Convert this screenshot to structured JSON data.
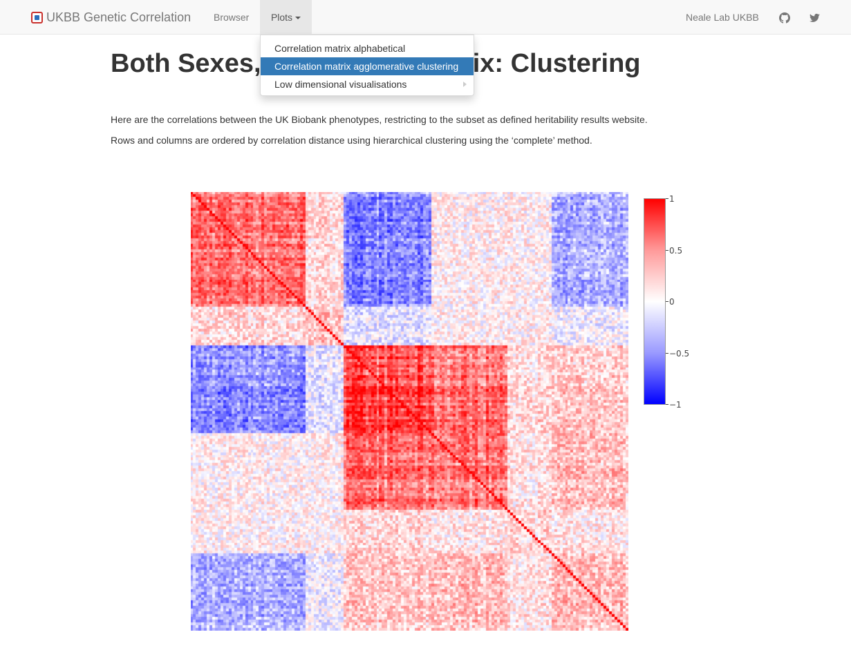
{
  "navbar": {
    "brand": "UKBB Genetic Correlation",
    "links": {
      "browser": "Browser",
      "plots": "Plots",
      "neale": "Neale Lab UKBB"
    },
    "icons": {
      "brand": "ukbb-logo-icon",
      "github": "github-icon",
      "twitter": "twitter-icon"
    }
  },
  "dropdown": {
    "items": [
      {
        "label": "Correlation matrix alphabetical"
      },
      {
        "label": "Correlation matrix agglomerative clustering",
        "active": true
      },
      {
        "label": "Low dimensional visualisations",
        "submenu": true
      }
    ]
  },
  "content": {
    "title": "Both Sexes, Correlation matrix: Clustering",
    "p1": "Here are the correlations between the UK Biobank phenotypes, restricting to the subset as defined heritability results website.",
    "p2": "Rows and columns are ordered by correlation distance using hierarchical clustering using the ‘complete’ method."
  },
  "heatmap": {
    "colorscale": [
      "#0000ff",
      "#ffffff",
      "#ff0000"
    ],
    "colorbar": {
      "ticks": [
        1,
        0.5,
        0,
        -0.5,
        -1
      ],
      "labels": [
        "1",
        "0.5",
        "0",
        "−0.5",
        "−1"
      ]
    }
  }
}
